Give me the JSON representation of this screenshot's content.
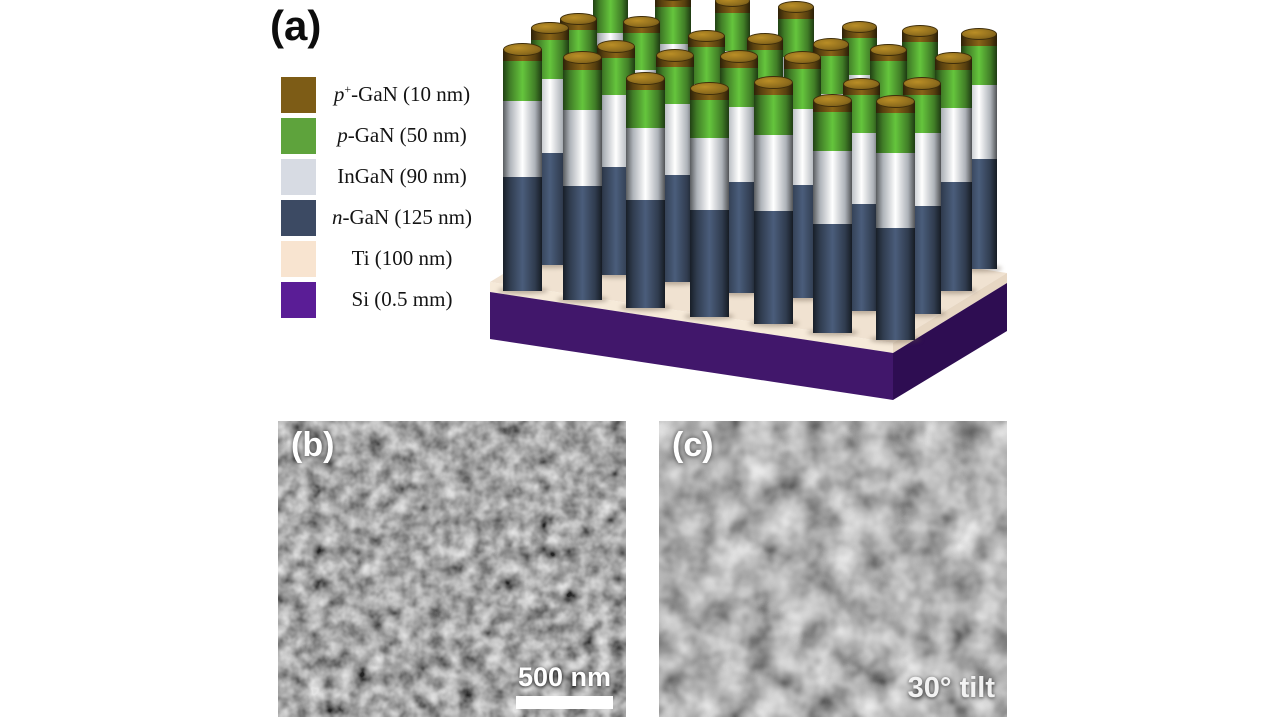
{
  "figure": {
    "panel_a": {
      "label": "(a)",
      "legend": [
        {
          "color": "#7d5c16",
          "italic": "p",
          "sup": "+",
          "text": "-GaN (10 nm)"
        },
        {
          "color": "#5ea33c",
          "italic": "p",
          "sup": "",
          "text": "-GaN (50 nm)"
        },
        {
          "color": "#d7dbe3",
          "italic": "",
          "sup": "",
          "text": "InGaN (90 nm)"
        },
        {
          "color": "#3c4a63",
          "italic": "n",
          "sup": "",
          "text": "-GaN (125 nm)"
        },
        {
          "color": "#f8e4d0",
          "italic": "",
          "sup": "",
          "text": "Ti (100 nm)"
        },
        {
          "color": "#5a1d96",
          "italic": "",
          "sup": "",
          "text": "Si (0.5 mm)"
        }
      ],
      "illustration": {
        "rows": 4,
        "cols": 7,
        "rod_colors": {
          "cap": "#6b4e12",
          "cap_top": "#8f6d1d",
          "p_gan": "#4f9a30",
          "ingan": "#d4dae2",
          "n_gan": "#3a4960"
        },
        "platform_colors": {
          "ti_top": "#f0e2d1",
          "ti_front": "#f6ead9",
          "ti_side": "#e7d7c3",
          "si_front": "#41176b",
          "si_side": "#2e0d52"
        }
      }
    },
    "panel_b": {
      "label": "(b)",
      "scale_bar_text": "500 nm"
    },
    "panel_c": {
      "label": "(c)",
      "annotation": "30° tilt"
    }
  }
}
